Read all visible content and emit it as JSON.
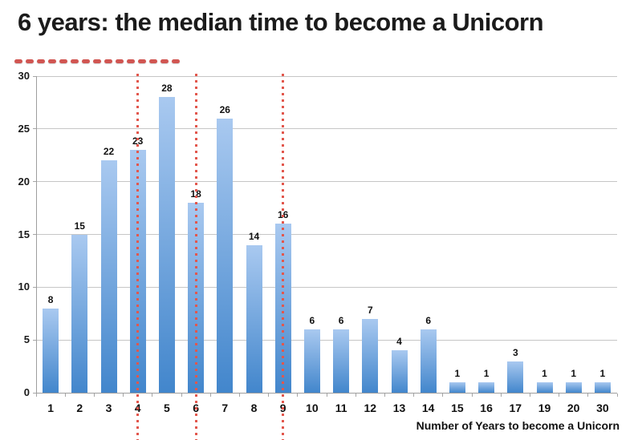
{
  "title": "6 years: the median time to become a Unicorn",
  "title_underline": {
    "dash_count": 15,
    "color": "#d15652"
  },
  "chart_data": {
    "type": "bar",
    "title": "6 years: the median time to become a Unicorn",
    "categories": [
      "1",
      "2",
      "3",
      "4",
      "5",
      "6",
      "7",
      "8",
      "9",
      "10",
      "11",
      "12",
      "13",
      "14",
      "15",
      "16",
      "17",
      "19",
      "20",
      "30"
    ],
    "values": [
      8,
      15,
      22,
      23,
      28,
      18,
      26,
      14,
      16,
      6,
      6,
      7,
      4,
      6,
      1,
      1,
      3,
      1,
      1,
      1
    ],
    "xlabel": "Number of Years to become a Unicorn",
    "ylabel": "",
    "ylim": [
      0,
      30
    ],
    "yticks": [
      0,
      5,
      10,
      15,
      20,
      25,
      30
    ],
    "grid": true,
    "legend": "none",
    "dotted_marker_categories": [
      "4",
      "6",
      "9"
    ],
    "colors": {
      "bar_top": "#a9c9f0",
      "bar_bottom": "#4286cc",
      "marker_dotted_line": "#e2574d",
      "gridline": "#c6c6c6",
      "axis_line": "#9e9e9e",
      "label_text": "#111111"
    }
  }
}
